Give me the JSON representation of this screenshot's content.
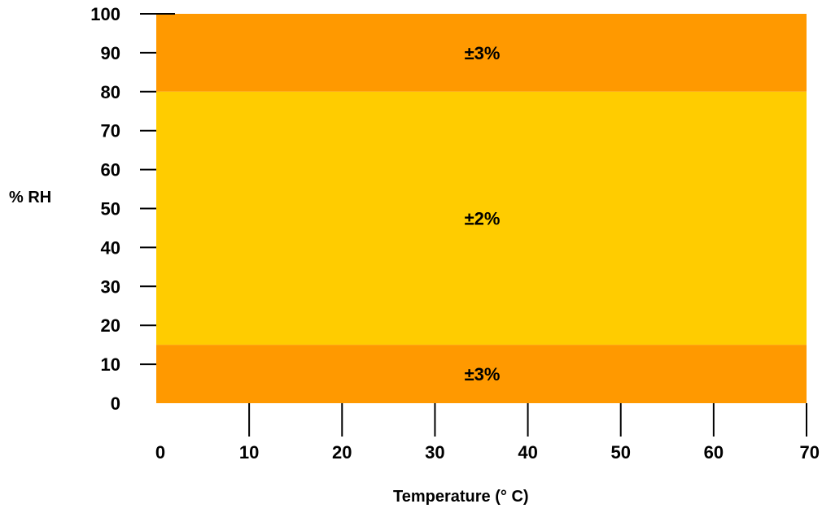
{
  "chart_data": {
    "type": "heatmap",
    "title": "",
    "xlabel": "Temperature (° C)",
    "ylabel": "% RH",
    "xlim": [
      0,
      70
    ],
    "ylim": [
      0,
      100
    ],
    "xticks": [
      0,
      10,
      20,
      30,
      40,
      50,
      60,
      70
    ],
    "yticks": [
      0,
      10,
      20,
      30,
      40,
      50,
      60,
      70,
      80,
      90,
      100
    ],
    "grid": false,
    "regions": [
      {
        "label": "±3%",
        "x_range": [
          0,
          70
        ],
        "y_range": [
          80,
          100
        ],
        "color": "#FF9900"
      },
      {
        "label": "±2%",
        "x_range": [
          0,
          70
        ],
        "y_range": [
          15,
          80
        ],
        "color": "#FFCC00"
      },
      {
        "label": "±3%",
        "x_range": [
          0,
          70
        ],
        "y_range": [
          0,
          15
        ],
        "color": "#FF9900"
      }
    ]
  }
}
